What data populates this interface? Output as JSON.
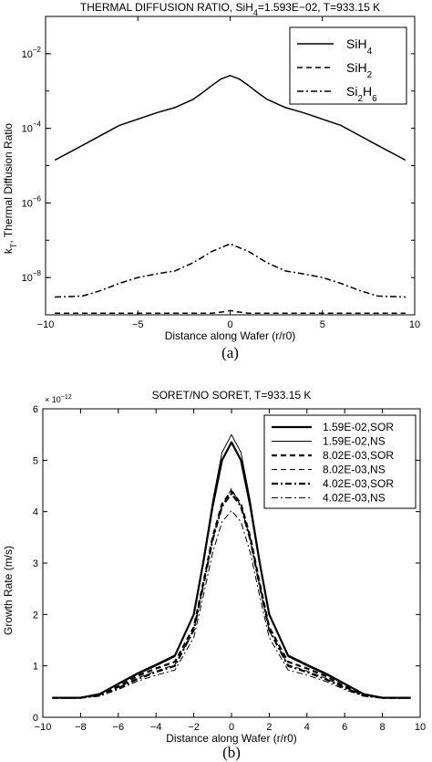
{
  "chart_data": [
    {
      "type": "line",
      "title": "THERMAL DIFFUSION RATIO, SiH4=1.593E-02, T=933.15 K",
      "title_parts": {
        "main": "THERMAL DIFFUSION RATIO, SiH",
        "sub": "4",
        "rest": "=1.593E−02, T=933.15 K"
      },
      "xlabel": "Distance along Wafer (r/r0)",
      "ylabel": "k_T, Thermal Diffusion Ratio",
      "ylabel_parts": {
        "main": "k",
        "sub": "T",
        "rest": ", Thermal Diffusion Ratio"
      },
      "xlim": [
        -10,
        10
      ],
      "ylim": [
        1e-09,
        0.1
      ],
      "yscale": "log",
      "xticks": [
        -10,
        -5,
        0,
        5,
        10
      ],
      "yticks": [
        {
          "value": 0.01,
          "base": "10",
          "exp": "−2"
        },
        {
          "value": 0.0001,
          "base": "10",
          "exp": "−4"
        },
        {
          "value": 1e-06,
          "base": "10",
          "exp": "−6"
        },
        {
          "value": 1e-08,
          "base": "10",
          "exp": "−8"
        }
      ],
      "grid": false,
      "legend_position": "top-right",
      "panel_label": "(a)",
      "series": [
        {
          "name": "SiH4",
          "name_parts": {
            "main": "SiH",
            "sub": "4",
            "rest": ""
          },
          "style": "solid",
          "x": [
            -9.5,
            -8,
            -6,
            -4,
            -3,
            -2,
            -1.5,
            -1,
            -0.5,
            0,
            0.5,
            1,
            1.5,
            2,
            3,
            4,
            6,
            8,
            9.5
          ],
          "y": [
            1.4e-05,
            3.5e-05,
            0.00012,
            0.00026,
            0.00036,
            0.0006,
            0.0009,
            0.0014,
            0.0021,
            0.0026,
            0.0021,
            0.0014,
            0.0009,
            0.0006,
            0.00036,
            0.00026,
            0.00012,
            3.5e-05,
            1.4e-05
          ]
        },
        {
          "name": "SiH2",
          "name_parts": {
            "main": "SiH",
            "sub": "2",
            "rest": ""
          },
          "style": "dashed",
          "x": [
            -9.5,
            -3,
            -1,
            -0.4,
            0,
            0.4,
            1,
            3,
            9.5
          ],
          "y": [
            1.1e-09,
            1.1e-09,
            1.1e-09,
            1.2e-09,
            1.3e-09,
            1.2e-09,
            1.1e-09,
            1.1e-09,
            1.1e-09
          ]
        },
        {
          "name": "Si2H6",
          "name_parts": {
            "main": "Si",
            "sub": "2",
            "rest": "H",
            "sub2": "6"
          },
          "style": "dashdot",
          "x": [
            -9.5,
            -8,
            -7,
            -6,
            -5,
            -4,
            -3,
            -2,
            -1,
            0,
            1,
            2,
            3,
            4,
            5,
            6,
            7,
            8,
            9.5
          ],
          "y": [
            3e-09,
            3.2e-09,
            4.5e-09,
            7e-09,
            1e-08,
            1.25e-08,
            1.5e-08,
            2.5e-08,
            5e-08,
            8e-08,
            5e-08,
            2.5e-08,
            1.5e-08,
            1.25e-08,
            1e-08,
            7e-09,
            4.5e-09,
            3.2e-09,
            3e-09
          ]
        }
      ]
    },
    {
      "type": "line",
      "title": "SORET/NO SORET, T=933.15 K",
      "xlabel": "Distance along Wafer (r/r0)",
      "ylabel": "Growth Rate (m/s)",
      "y_multiplier": "× 10",
      "y_multiplier_exp": "−12",
      "xlim": [
        -10,
        10
      ],
      "ylim": [
        0,
        6
      ],
      "xticks": [
        -10,
        -8,
        -6,
        -4,
        -2,
        0,
        2,
        4,
        6,
        8,
        10
      ],
      "yticks": [
        0,
        1,
        2,
        3,
        4,
        5,
        6
      ],
      "grid": false,
      "legend_position": "top-right",
      "panel_label": "(b)",
      "series": [
        {
          "name": "1.59E-02,SOR",
          "style": "solid-thick",
          "x": [
            -9.5,
            -8,
            -7,
            -6,
            -5,
            -4,
            -3,
            -2,
            -1.5,
            -1,
            -0.5,
            0,
            0.5,
            1,
            1.5,
            2,
            3,
            4,
            5,
            6,
            7,
            8,
            9.5
          ],
          "y": [
            0.38,
            0.38,
            0.45,
            0.65,
            0.85,
            1.02,
            1.2,
            2.0,
            3.0,
            4.1,
            5.0,
            5.35,
            5.0,
            4.1,
            3.0,
            2.0,
            1.2,
            1.02,
            0.85,
            0.65,
            0.45,
            0.38,
            0.38
          ]
        },
        {
          "name": "1.59E-02,NS",
          "style": "solid-thin",
          "x": [
            -9.5,
            -8,
            -7,
            -6,
            -5,
            -4,
            -3,
            -2,
            -1.5,
            -1,
            -0.5,
            0,
            0.5,
            1,
            1.5,
            2,
            3,
            4,
            5,
            6,
            7,
            8,
            9.5
          ],
          "y": [
            0.38,
            0.38,
            0.45,
            0.64,
            0.83,
            1.0,
            1.18,
            2.0,
            3.05,
            4.2,
            5.15,
            5.5,
            5.15,
            4.2,
            3.05,
            2.0,
            1.18,
            1.0,
            0.83,
            0.64,
            0.45,
            0.38,
            0.38
          ]
        },
        {
          "name": "8.02E-03,SOR",
          "style": "dashed-thick",
          "x": [
            -9.5,
            -8,
            -7,
            -6,
            -5,
            -4,
            -3,
            -2,
            -1.5,
            -1,
            -0.5,
            0,
            0.5,
            1,
            1.5,
            2,
            3,
            4,
            5,
            6,
            7,
            8,
            9.5
          ],
          "y": [
            0.38,
            0.38,
            0.44,
            0.6,
            0.8,
            0.95,
            1.08,
            1.75,
            2.6,
            3.5,
            4.15,
            4.4,
            4.15,
            3.5,
            2.6,
            1.75,
            1.08,
            0.95,
            0.8,
            0.6,
            0.44,
            0.38,
            0.38
          ]
        },
        {
          "name": "8.02E-03,NS",
          "style": "dashed-thin",
          "x": [
            -9.5,
            -8,
            -7,
            -6,
            -5,
            -4,
            -3,
            -2,
            -1.5,
            -1,
            -0.5,
            0,
            0.5,
            1,
            1.5,
            2,
            3,
            4,
            5,
            6,
            7,
            8,
            9.5
          ],
          "y": [
            0.38,
            0.38,
            0.43,
            0.58,
            0.76,
            0.9,
            1.02,
            1.68,
            2.55,
            3.45,
            4.1,
            4.45,
            4.1,
            3.45,
            2.55,
            1.68,
            1.02,
            0.9,
            0.76,
            0.58,
            0.43,
            0.38,
            0.38
          ]
        },
        {
          "name": "4.02E-03,SOR",
          "style": "dashdot-thick",
          "x": [
            -9.5,
            -8,
            -7,
            -6,
            -5,
            -4,
            -3,
            -2,
            -1.5,
            -1,
            -0.5,
            0,
            0.5,
            1,
            1.5,
            2,
            3,
            4,
            5,
            6,
            7,
            8,
            9.5
          ],
          "y": [
            0.38,
            0.38,
            0.42,
            0.57,
            0.74,
            0.88,
            1.0,
            1.7,
            2.55,
            3.45,
            4.1,
            4.35,
            4.1,
            3.45,
            2.55,
            1.7,
            1.0,
            0.88,
            0.74,
            0.57,
            0.42,
            0.38,
            0.38
          ]
        },
        {
          "name": "4.02E-03,NS",
          "style": "dashdot-thin",
          "x": [
            -9.5,
            -8,
            -7,
            -6,
            -5,
            -4,
            -3,
            -2,
            -1.5,
            -1,
            -0.5,
            0,
            0.5,
            1,
            1.5,
            2,
            3,
            4,
            5,
            6,
            7,
            8,
            9.5
          ],
          "y": [
            0.38,
            0.38,
            0.41,
            0.54,
            0.7,
            0.82,
            0.92,
            1.55,
            2.35,
            3.2,
            3.8,
            4.02,
            3.8,
            3.2,
            2.35,
            1.55,
            0.92,
            0.82,
            0.7,
            0.54,
            0.41,
            0.38,
            0.38
          ]
        }
      ]
    }
  ]
}
